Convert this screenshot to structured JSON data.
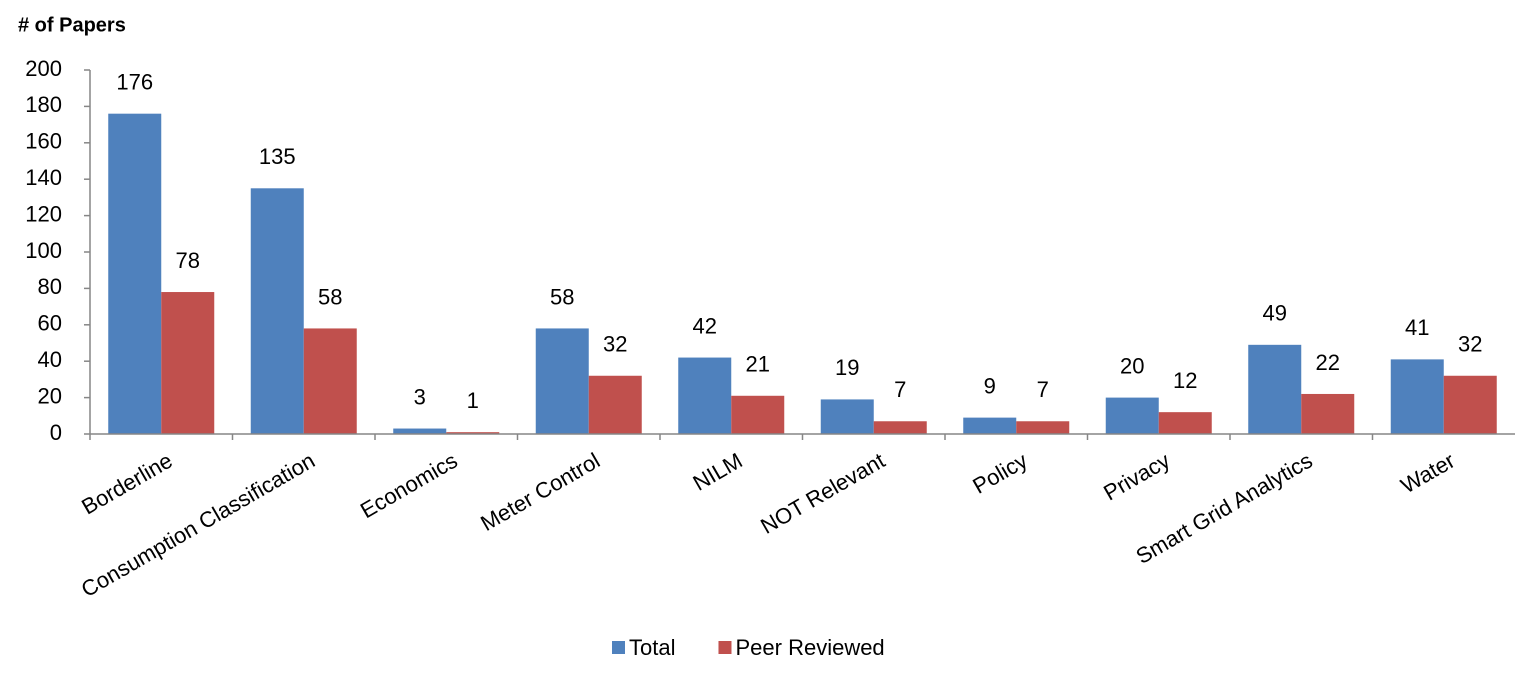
{
  "chart_data": {
    "type": "bar",
    "y_label": "# of Papers",
    "categories": [
      "Borderline",
      "Consumption Classification",
      "Economics",
      "Meter Control",
      "NILM",
      "NOT Relevant",
      "Policy",
      "Privacy",
      "Smart Grid Analytics",
      "Water"
    ],
    "series": [
      {
        "name": "Total",
        "color": "#4f81bd",
        "values": [
          176,
          135,
          3,
          58,
          42,
          19,
          9,
          20,
          49,
          41
        ]
      },
      {
        "name": "Peer Reviewed",
        "color": "#c0504d",
        "values": [
          78,
          58,
          1,
          32,
          21,
          7,
          7,
          12,
          22,
          32
        ]
      }
    ],
    "ylim": [
      0,
      200
    ],
    "yticks": [
      0,
      20,
      40,
      60,
      80,
      100,
      120,
      140,
      160,
      180,
      200
    ],
    "grid": false,
    "legend": "bottom"
  }
}
